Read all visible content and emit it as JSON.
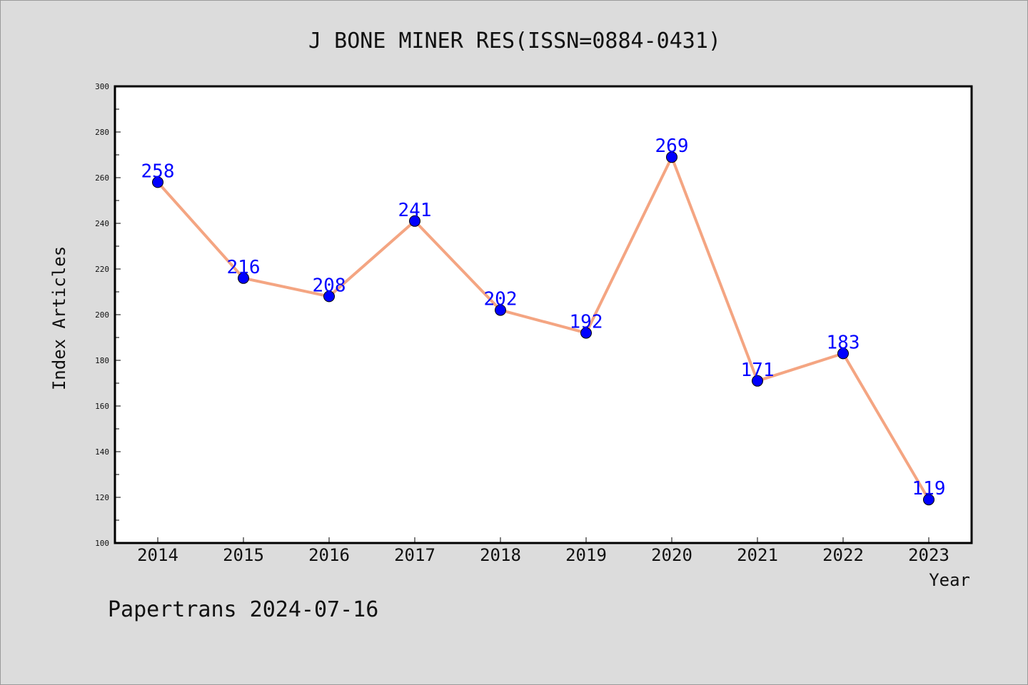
{
  "chart_data": {
    "type": "line",
    "title": "J BONE MINER RES(ISSN=0884-0431)",
    "xlabel": "Year",
    "ylabel": "Index Articles",
    "categories": [
      "2014",
      "2015",
      "2016",
      "2017",
      "2018",
      "2019",
      "2020",
      "2021",
      "2022",
      "2023"
    ],
    "series": [
      {
        "values": [
          258,
          216,
          208,
          241,
          202,
          192,
          269,
          171,
          183,
          119
        ]
      }
    ],
    "data_labels": [
      "258",
      "216",
      "208",
      "241",
      "202",
      "192",
      "269",
      "171",
      "183",
      "119"
    ],
    "ylim": [
      100,
      300
    ],
    "yticks": [
      "100",
      "120",
      "140",
      "160",
      "180",
      "200",
      "220",
      "240",
      "260",
      "280",
      "300"
    ],
    "grid": false,
    "legend": "none",
    "colors": {
      "line": "#f4a582",
      "marker": "#0000ff",
      "label": "#0000ff",
      "plot_background": "#ffffff",
      "figure_background": "#dcdcdc"
    }
  },
  "footer": "Papertrans 2024-07-16"
}
